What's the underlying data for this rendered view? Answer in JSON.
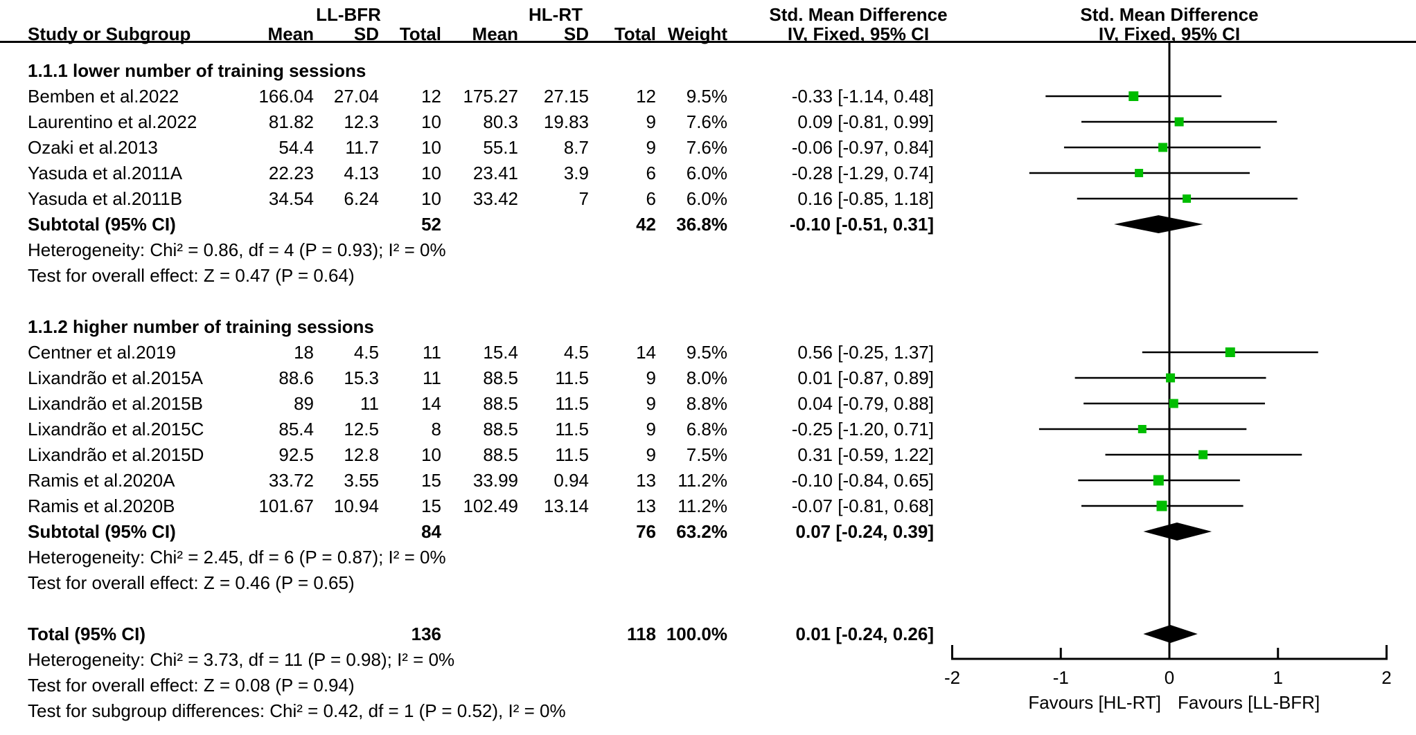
{
  "header": {
    "group1": "LL-BFR",
    "group2": "HL-RT",
    "effect_title": "Std. Mean Difference",
    "effect_subtitle": "IV, Fixed, 95% CI",
    "study_col": "Study or Subgroup",
    "mean_col": "Mean",
    "sd_col": "SD",
    "total_col": "Total",
    "weight_col": "Weight"
  },
  "colors": {
    "marker_green": "#00bd00",
    "line_black": "#000000",
    "diamond_black": "#000000",
    "text_black": "#000000"
  },
  "chart_data": {
    "type": "forest",
    "effect_measure": "Std. Mean Difference (IV, Fixed, 95% CI)",
    "axis": {
      "min": -2,
      "max": 2,
      "ticks": [
        "-2",
        "-1",
        "0",
        "1",
        "2"
      ],
      "favours_left": "Favours [HL-RT]",
      "favours_right": "Favours [LL-BFR]"
    },
    "groups": [
      {
        "title": "1.1.1 lower number of training sessions",
        "studies": [
          {
            "study": "Bemben et al.2022",
            "mean1": "166.04",
            "sd1": "27.04",
            "n1": "12",
            "mean2": "175.27",
            "sd2": "27.15",
            "n2": "12",
            "weight": "9.5%",
            "est": -0.33,
            "lo": -1.14,
            "hi": 0.48,
            "ci": "-0.33 [-1.14, 0.48]"
          },
          {
            "study": "Laurentino et al.2022",
            "mean1": "81.82",
            "sd1": "12.3",
            "n1": "10",
            "mean2": "80.3",
            "sd2": "19.83",
            "n2": "9",
            "weight": "7.6%",
            "est": 0.09,
            "lo": -0.81,
            "hi": 0.99,
            "ci": "0.09 [-0.81, 0.99]"
          },
          {
            "study": "Ozaki et al.2013",
            "mean1": "54.4",
            "sd1": "11.7",
            "n1": "10",
            "mean2": "55.1",
            "sd2": "8.7",
            "n2": "9",
            "weight": "7.6%",
            "est": -0.06,
            "lo": -0.97,
            "hi": 0.84,
            "ci": "-0.06 [-0.97, 0.84]"
          },
          {
            "study": "Yasuda et al.2011A",
            "mean1": "22.23",
            "sd1": "4.13",
            "n1": "10",
            "mean2": "23.41",
            "sd2": "3.9",
            "n2": "6",
            "weight": "6.0%",
            "est": -0.28,
            "lo": -1.29,
            "hi": 0.74,
            "ci": "-0.28 [-1.29, 0.74]"
          },
          {
            "study": "Yasuda et al.2011B",
            "mean1": "34.54",
            "sd1": "6.24",
            "n1": "10",
            "mean2": "33.42",
            "sd2": "7",
            "n2": "6",
            "weight": "6.0%",
            "est": 0.16,
            "lo": -0.85,
            "hi": 1.18,
            "ci": "0.16 [-0.85, 1.18]"
          }
        ],
        "subtotal": {
          "label": "Subtotal (95% CI)",
          "n1": "52",
          "n2": "42",
          "weight": "36.8%",
          "est": -0.1,
          "lo": -0.51,
          "hi": 0.31,
          "ci": "-0.10 [-0.51, 0.31]"
        },
        "heterogeneity": "Heterogeneity: Chi² = 0.86, df = 4 (P = 0.93); I² = 0%",
        "overall_effect": "Test for overall effect: Z = 0.47 (P = 0.64)"
      },
      {
        "title": "1.1.2 higher number of training sessions",
        "studies": [
          {
            "study": "Centner et al.2019",
            "mean1": "18",
            "sd1": "4.5",
            "n1": "11",
            "mean2": "15.4",
            "sd2": "4.5",
            "n2": "14",
            "weight": "9.5%",
            "est": 0.56,
            "lo": -0.25,
            "hi": 1.37,
            "ci": "0.56 [-0.25, 1.37]"
          },
          {
            "study": "Lixandrão et al.2015A",
            "mean1": "88.6",
            "sd1": "15.3",
            "n1": "11",
            "mean2": "88.5",
            "sd2": "11.5",
            "n2": "9",
            "weight": "8.0%",
            "est": 0.01,
            "lo": -0.87,
            "hi": 0.89,
            "ci": "0.01 [-0.87, 0.89]"
          },
          {
            "study": "Lixandrão et al.2015B",
            "mean1": "89",
            "sd1": "11",
            "n1": "14",
            "mean2": "88.5",
            "sd2": "11.5",
            "n2": "9",
            "weight": "8.8%",
            "est": 0.04,
            "lo": -0.79,
            "hi": 0.88,
            "ci": "0.04 [-0.79, 0.88]"
          },
          {
            "study": "Lixandrão et al.2015C",
            "mean1": "85.4",
            "sd1": "12.5",
            "n1": "8",
            "mean2": "88.5",
            "sd2": "11.5",
            "n2": "9",
            "weight": "6.8%",
            "est": -0.25,
            "lo": -1.2,
            "hi": 0.71,
            "ci": "-0.25 [-1.20, 0.71]"
          },
          {
            "study": "Lixandrão et al.2015D",
            "mean1": "92.5",
            "sd1": "12.8",
            "n1": "10",
            "mean2": "88.5",
            "sd2": "11.5",
            "n2": "9",
            "weight": "7.5%",
            "est": 0.31,
            "lo": -0.59,
            "hi": 1.22,
            "ci": "0.31 [-0.59, 1.22]"
          },
          {
            "study": "Ramis et al.2020A",
            "mean1": "33.72",
            "sd1": "3.55",
            "n1": "15",
            "mean2": "33.99",
            "sd2": "0.94",
            "n2": "13",
            "weight": "11.2%",
            "est": -0.1,
            "lo": -0.84,
            "hi": 0.65,
            "ci": "-0.10 [-0.84, 0.65]"
          },
          {
            "study": "Ramis et al.2020B",
            "mean1": "101.67",
            "sd1": "10.94",
            "n1": "15",
            "mean2": "102.49",
            "sd2": "13.14",
            "n2": "13",
            "weight": "11.2%",
            "est": -0.07,
            "lo": -0.81,
            "hi": 0.68,
            "ci": "-0.07 [-0.81, 0.68]"
          }
        ],
        "subtotal": {
          "label": "Subtotal (95% CI)",
          "n1": "84",
          "n2": "76",
          "weight": "63.2%",
          "est": 0.07,
          "lo": -0.24,
          "hi": 0.39,
          "ci": "0.07 [-0.24, 0.39]"
        },
        "heterogeneity": "Heterogeneity: Chi² = 2.45, df = 6 (P = 0.87); I² = 0%",
        "overall_effect": "Test for overall effect: Z = 0.46 (P = 0.65)"
      }
    ],
    "total": {
      "label": "Total (95% CI)",
      "n1": "136",
      "n2": "118",
      "weight": "100.0%",
      "est": 0.01,
      "lo": -0.24,
      "hi": 0.26,
      "ci": "0.01 [-0.24, 0.26]"
    },
    "total_heterogeneity": "Heterogeneity: Chi² = 3.73, df = 11 (P = 0.98); I² = 0%",
    "total_overall_effect": "Test for overall effect: Z = 0.08 (P = 0.94)",
    "subgroup_differences": "Test for subgroup differences: Chi² = 0.42, df = 1 (P = 0.52), I² = 0%"
  }
}
